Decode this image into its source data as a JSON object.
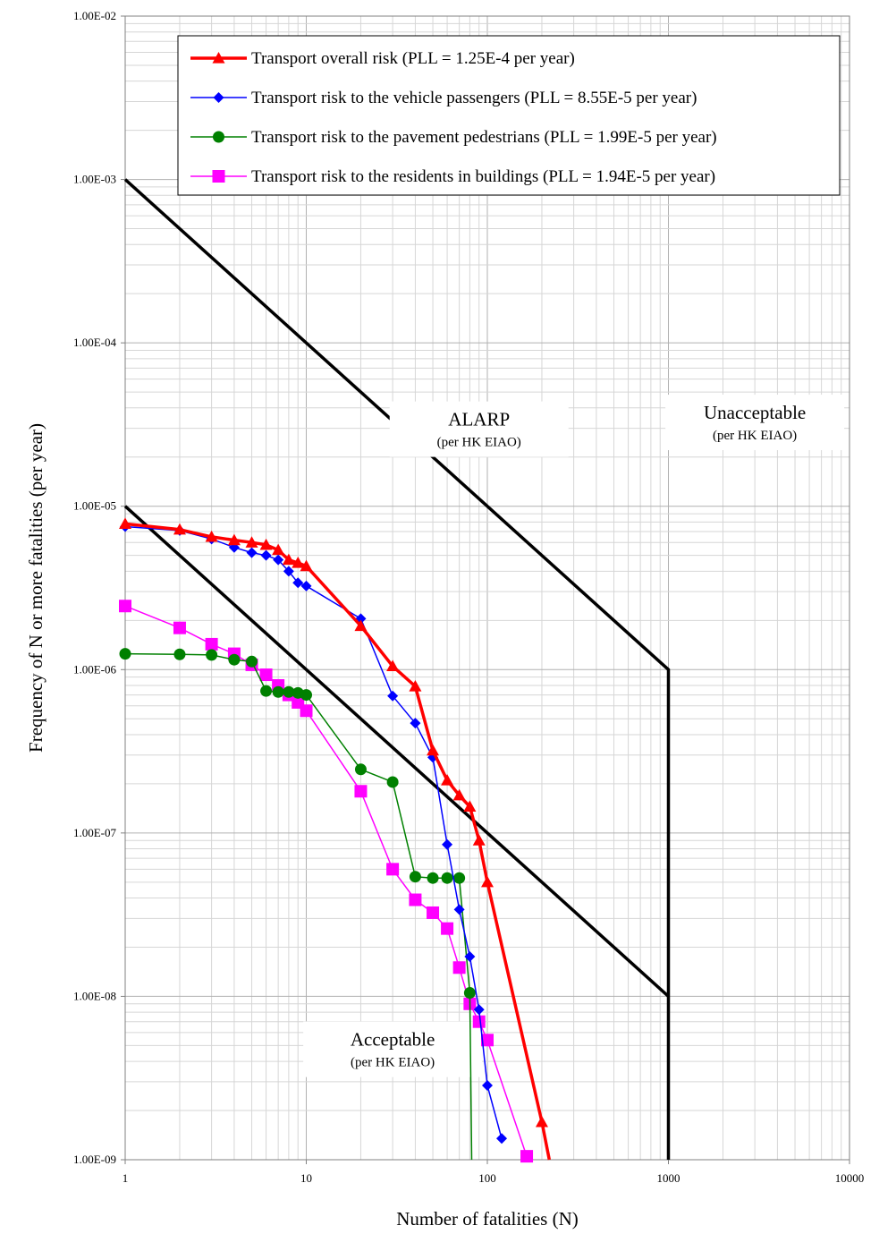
{
  "chart_data": {
    "type": "line",
    "xscale": "log",
    "yscale": "log",
    "xlim": [
      1,
      10000
    ],
    "ylim": [
      1e-09,
      0.01
    ],
    "xlabel": "Number of fatalities (N)",
    "ylabel": "Frequency of N or more fatalities (per year)",
    "x_ticks": [
      "1",
      "10",
      "100",
      "1000",
      "10000"
    ],
    "y_ticks": [
      "1.00E-09",
      "1.00E-08",
      "1.00E-07",
      "1.00E-06",
      "1.00E-05",
      "1.00E-04",
      "1.00E-03",
      "1.00E-02"
    ],
    "grid": true,
    "legend_position": "top-right",
    "series": [
      {
        "name": "Transport overall risk (PLL = 1.25E-4 per year)",
        "color": "#ff0000",
        "marker": "triangle",
        "points": [
          [
            1,
            7.8e-06
          ],
          [
            2,
            7.2e-06
          ],
          [
            3,
            6.5e-06
          ],
          [
            4,
            6.2e-06
          ],
          [
            5,
            6e-06
          ],
          [
            6,
            5.8e-06
          ],
          [
            7,
            5.4e-06
          ],
          [
            8,
            4.7e-06
          ],
          [
            9,
            4.5e-06
          ],
          [
            10,
            4.3e-06
          ],
          [
            20,
            1.85e-06
          ],
          [
            30,
            1.05e-06
          ],
          [
            40,
            7.9e-07
          ],
          [
            50,
            3.2e-07
          ],
          [
            60,
            2.1e-07
          ],
          [
            70,
            1.7e-07
          ],
          [
            80,
            1.45e-07
          ],
          [
            90,
            9e-08
          ],
          [
            100,
            5e-08
          ],
          [
            200,
            1.7e-09
          ],
          [
            220,
            1e-09
          ]
        ]
      },
      {
        "name": "Transport risk to the vehicle passengers (PLL = 8.55E-5 per year)",
        "color": "#0000ff",
        "marker": "diamond",
        "points": [
          [
            1,
            7.5e-06
          ],
          [
            2,
            7.1e-06
          ],
          [
            3,
            6.3e-06
          ],
          [
            4,
            5.6e-06
          ],
          [
            5,
            5.2e-06
          ],
          [
            6,
            5e-06
          ],
          [
            7,
            4.7e-06
          ],
          [
            8,
            4e-06
          ],
          [
            9,
            3.4e-06
          ],
          [
            10,
            3.25e-06
          ],
          [
            20,
            2.05e-06
          ],
          [
            30,
            6.9e-07
          ],
          [
            40,
            4.7e-07
          ],
          [
            50,
            2.9e-07
          ],
          [
            60,
            8.5e-08
          ],
          [
            70,
            3.4e-08
          ],
          [
            80,
            1.75e-08
          ],
          [
            90,
            8.3e-09
          ],
          [
            100,
            2.85e-09
          ],
          [
            120,
            1.35e-09
          ]
        ]
      },
      {
        "name": "Transport risk to the pavement pedestrians (PLL = 1.99E-5 per year)",
        "color": "#008000",
        "marker": "circle",
        "points": [
          [
            1,
            1.25e-06
          ],
          [
            2,
            1.24e-06
          ],
          [
            3,
            1.23e-06
          ],
          [
            4,
            1.15e-06
          ],
          [
            5,
            1.12e-06
          ],
          [
            6,
            7.4e-07
          ],
          [
            7,
            7.3e-07
          ],
          [
            8,
            7.3e-07
          ],
          [
            9,
            7.2e-07
          ],
          [
            10,
            7e-07
          ],
          [
            20,
            2.45e-07
          ],
          [
            30,
            2.05e-07
          ],
          [
            40,
            5.4e-08
          ],
          [
            50,
            5.3e-08
          ],
          [
            60,
            5.3e-08
          ],
          [
            70,
            5.3e-08
          ],
          [
            80,
            1.05e-08
          ],
          [
            82,
            1e-09
          ]
        ]
      },
      {
        "name": "Transport risk to the residents in buildings (PLL = 1.94E-5 per year)",
        "color": "#ff00ff",
        "marker": "square",
        "points": [
          [
            1,
            2.45e-06
          ],
          [
            2,
            1.8e-06
          ],
          [
            3,
            1.43e-06
          ],
          [
            4,
            1.25e-06
          ],
          [
            5,
            1.07e-06
          ],
          [
            6,
            9.3e-07
          ],
          [
            7,
            8e-07
          ],
          [
            8,
            7e-07
          ],
          [
            9,
            6.3e-07
          ],
          [
            10,
            5.6e-07
          ],
          [
            20,
            1.8e-07
          ],
          [
            30,
            6e-08
          ],
          [
            40,
            3.9e-08
          ],
          [
            50,
            3.25e-08
          ],
          [
            60,
            2.6e-08
          ],
          [
            70,
            1.5e-08
          ],
          [
            80,
            9e-09
          ],
          [
            90,
            7e-09
          ],
          [
            100,
            5.4e-09
          ],
          [
            165,
            1.05e-09
          ]
        ]
      }
    ],
    "criteria_lines": {
      "color": "#000000",
      "upper": [
        [
          1,
          0.001
        ],
        [
          1000,
          1e-06
        ],
        [
          1000,
          1e-09
        ]
      ],
      "lower": [
        [
          1,
          1e-05
        ],
        [
          1000,
          1e-08
        ]
      ]
    },
    "regions": [
      {
        "title": "Unacceptable",
        "subtitle": "(per HK EIAO)",
        "anchor": [
          3000,
          3.3e-05
        ]
      },
      {
        "title": "ALARP",
        "subtitle": "(per HK EIAO)",
        "anchor": [
          90,
          3e-05
        ]
      },
      {
        "title": "Acceptable",
        "subtitle": "(per HK EIAO)",
        "anchor": [
          30,
          4.8e-09
        ]
      }
    ]
  }
}
